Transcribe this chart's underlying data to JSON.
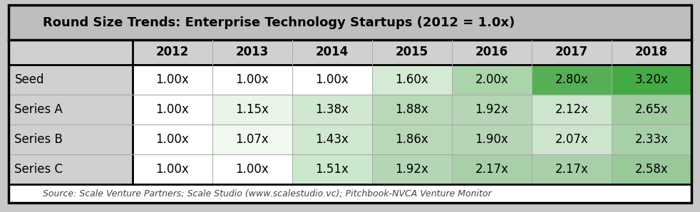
{
  "title": "Round Size Trends: Enterprise Technology Startups (2012 = 1.0x)",
  "source_text": "Source: Scale Venture Partners; Scale Studio (www.scalestudio.vc); Pitchbook-NVCA Venture Monitor",
  "columns": [
    "2012",
    "2013",
    "2014",
    "2015",
    "2016",
    "2017",
    "2018"
  ],
  "row_labels": [
    "Seed",
    "Series A",
    "Series B",
    "Series C"
  ],
  "values": [
    [
      "1.00x",
      "1.00x",
      "1.00x",
      "1.60x",
      "2.00x",
      "2.80x",
      "3.20x"
    ],
    [
      "1.00x",
      "1.15x",
      "1.38x",
      "1.88x",
      "1.92x",
      "2.12x",
      "2.65x"
    ],
    [
      "1.00x",
      "1.07x",
      "1.43x",
      "1.86x",
      "1.90x",
      "2.07x",
      "2.33x"
    ],
    [
      "1.00x",
      "1.00x",
      "1.51x",
      "1.92x",
      "2.17x",
      "2.17x",
      "2.58x"
    ]
  ],
  "cell_colors": [
    [
      "#ffffff",
      "#ffffff",
      "#ffffff",
      "#d5ead5",
      "#aad4aa",
      "#55b055",
      "#44aa44"
    ],
    [
      "#ffffff",
      "#eaf5ea",
      "#d0e8d0",
      "#b8d8b8",
      "#b5d5b5",
      "#cce5cc",
      "#a0cca0"
    ],
    [
      "#ffffff",
      "#f0f8f0",
      "#d0e8d0",
      "#b8d8b8",
      "#b5d5b5",
      "#cce5cc",
      "#a8d0a8"
    ],
    [
      "#ffffff",
      "#ffffff",
      "#cce8cc",
      "#b5d6b5",
      "#a8cfa8",
      "#a8cfa8",
      "#99c899"
    ]
  ],
  "title_bg": "#bebebe",
  "header_bg": "#d0d0d0",
  "row_label_bg": "#d0d0d0",
  "sep_color": "#aaaaaa",
  "border_color": "#000000",
  "outer_bg": "#c8c8c8",
  "footer_bg": "#ffffff",
  "title_fontsize": 13,
  "header_fontsize": 12,
  "cell_fontsize": 12,
  "source_fontsize": 9,
  "col_widths_rel": [
    1.55,
    1.0,
    1.0,
    1.0,
    1.0,
    1.0,
    1.0,
    1.0
  ]
}
